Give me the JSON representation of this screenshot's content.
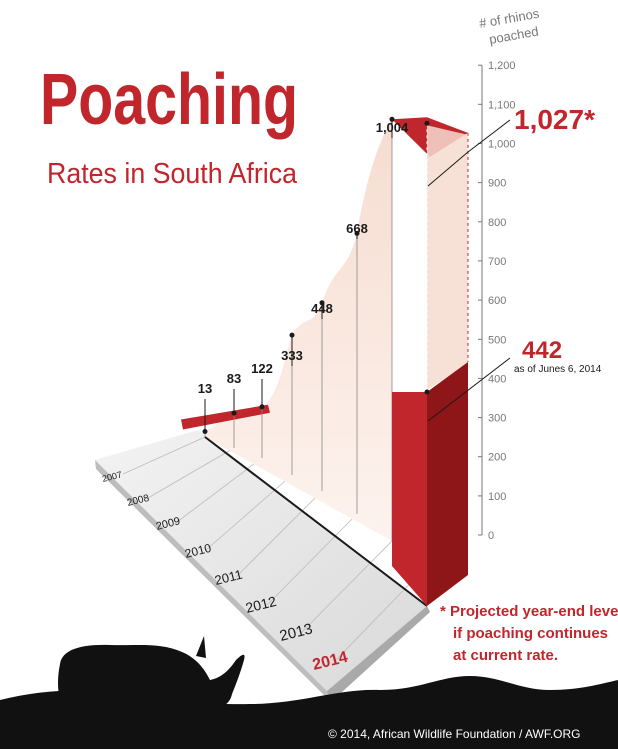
{
  "title": {
    "main": "Poaching",
    "sub": "Rates in South Africa"
  },
  "axis": {
    "label_line1": "# of rhinos",
    "label_line2": "poached",
    "ticks": [
      "0",
      "100",
      "200",
      "300",
      "400",
      "500",
      "600",
      "700",
      "800",
      "900",
      "1,000",
      "1,100",
      "1,200"
    ]
  },
  "callouts": {
    "projected_value": "1,027*",
    "current_value": "442",
    "current_note": "as of Junes 6, 2014"
  },
  "footnote": {
    "line1": "* Projected year-end level",
    "line2": "if poaching continues",
    "line3": "at current rate."
  },
  "credit": "© 2014, African Wildlife Foundation / AWF.ORG",
  "colors": {
    "red": "#c0262b",
    "dark_red": "#8e1518",
    "peach": "#f6dcd0",
    "text": "#1a1a1a",
    "axis_gray": "#777777"
  },
  "chart_data": {
    "type": "area",
    "categories": [
      "2007",
      "2008",
      "2009",
      "2010",
      "2011",
      "2012",
      "2013",
      "2014"
    ],
    "series": [
      {
        "values": [
          13,
          83,
          122,
          333,
          448,
          668,
          1004,
          442
        ]
      }
    ],
    "data_labels": [
      "13",
      "83",
      "122",
      "333",
      "448",
      "668",
      "1,004"
    ],
    "projected": {
      "category": "2014",
      "value": 1027,
      "label": "1,027*"
    },
    "current": {
      "category": "2014",
      "value": 442,
      "label": "442",
      "note": "as of Junes 6, 2014"
    },
    "ylabel": "# of rhinos poached",
    "ylim": [
      0,
      1200
    ],
    "grid": false,
    "legend": "none"
  }
}
